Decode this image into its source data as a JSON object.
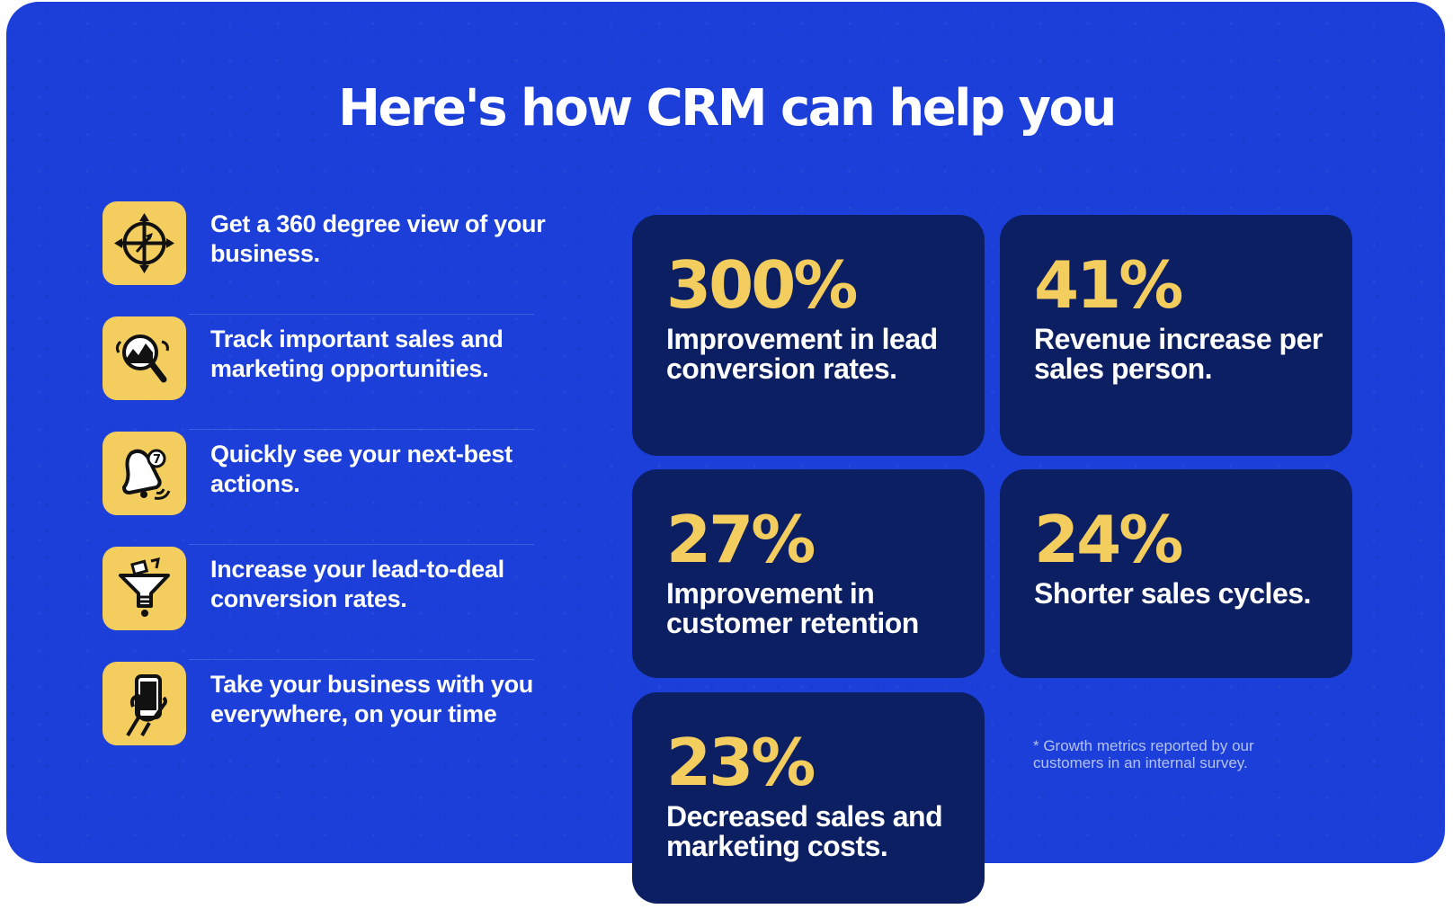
{
  "title": "Here's how CRM can help you",
  "colors": {
    "background": "#1b3fd8",
    "card": "#0d1f63",
    "accent": "#f3cd5e",
    "text": "#ffffff"
  },
  "features": [
    {
      "icon": "compass-target-icon",
      "text": "Get a 360 degree view of your business."
    },
    {
      "icon": "magnifier-chart-icon",
      "text": "Track important sales and marketing opportunities."
    },
    {
      "icon": "bell-notification-icon",
      "text": "Quickly see your next-best actions."
    },
    {
      "icon": "funnel-icon",
      "text": "Increase your lead-to-deal conversion rates."
    },
    {
      "icon": "mobile-phone-hand-icon",
      "text": "Take your business with you everywhere, on your time"
    }
  ],
  "stats": [
    {
      "value": "300%",
      "desc": "Improvement in lead conversion rates."
    },
    {
      "value": "41%",
      "desc": "Revenue increase per sales person."
    },
    {
      "value": "27%",
      "desc": "Improvement in customer retention"
    },
    {
      "value": "24%",
      "desc": "Shorter sales cycles."
    },
    {
      "value": "23%",
      "desc": "Decreased sales and marketing costs."
    }
  ],
  "footnote": "* Growth metrics reported by our customers in an internal survey."
}
